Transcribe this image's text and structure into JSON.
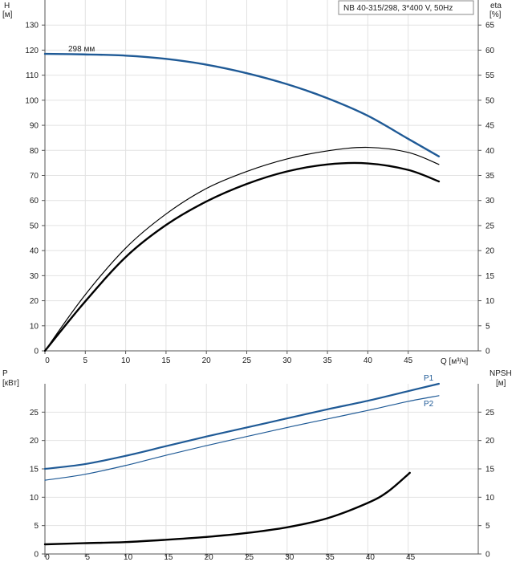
{
  "title_box": "NB 40-315/298, 3*400 V, 50Hz",
  "colors": {
    "blue": "#1f5a96",
    "black": "#000000",
    "grid": "#e2e2e2"
  },
  "chart_data": [
    {
      "type": "line",
      "ylabel_left": {
        "name": "H",
        "unit": "[м]"
      },
      "ylabel_right": {
        "name": "eta",
        "unit": "[%]"
      },
      "xlabel": "Q [м³/ч]",
      "xlim": [
        0,
        50
      ],
      "x_ticks": [
        0,
        5,
        10,
        15,
        20,
        25,
        30,
        35,
        40,
        45
      ],
      "ylim_left": [
        0,
        140
      ],
      "y_ticks_left": [
        0,
        10,
        20,
        30,
        40,
        50,
        60,
        70,
        80,
        90,
        100,
        110,
        120,
        130
      ],
      "ylim_right": [
        0,
        70
      ],
      "y_ticks_right": [
        0,
        5,
        10,
        15,
        20,
        25,
        30,
        35,
        40,
        45,
        50,
        55,
        60,
        65
      ],
      "grid": true,
      "series": [
        {
          "name": "298 мм",
          "axis": "left",
          "color": "#1f5a96",
          "x": [
            0,
            4.8,
            10,
            15,
            20,
            25,
            30,
            35,
            40,
            45,
            48.8
          ],
          "y": [
            118.5,
            118.3,
            117.8,
            116.5,
            114.2,
            110.8,
            106.4,
            100.8,
            93.8,
            84.6,
            77.6
          ]
        },
        {
          "axis": "right",
          "color": "#000000",
          "x": [
            0,
            4.8,
            10,
            15,
            20,
            25,
            30,
            35,
            40,
            45,
            48.8
          ],
          "y": [
            0,
            10.8,
            20.5,
            27.3,
            32.4,
            35.8,
            38.3,
            39.9,
            40.6,
            39.6,
            37.2
          ]
        },
        {
          "axis": "right",
          "color": "#000000",
          "x": [
            0,
            4.8,
            10,
            15,
            20,
            25,
            30,
            35,
            40,
            45,
            48.8
          ],
          "y": [
            0,
            9.5,
            18.7,
            25.1,
            29.8,
            33.3,
            35.8,
            37.2,
            37.4,
            36.1,
            33.8
          ]
        }
      ]
    },
    {
      "type": "line",
      "ylabel_left": {
        "name": "P",
        "unit": "[кВт]"
      },
      "ylabel_right": {
        "name": "NPSH",
        "unit": "[м]"
      },
      "xlim": [
        0,
        50
      ],
      "x_ticks": [
        0,
        5,
        10,
        15,
        20,
        25,
        30,
        35,
        40,
        45
      ],
      "ylim_left": [
        0,
        30
      ],
      "y_ticks_left": [
        0,
        5,
        10,
        15,
        20,
        25
      ],
      "ylim_right": [
        0,
        30
      ],
      "y_ticks_right": [
        0,
        5,
        10,
        15,
        20,
        25
      ],
      "grid": true,
      "series": [
        {
          "name": "P1",
          "axis": "left",
          "color": "#1f5a96",
          "x": [
            0,
            4.8,
            10,
            15,
            20,
            25,
            30,
            35,
            40,
            45,
            48.8
          ],
          "y": [
            15.0,
            15.8,
            17.3,
            19.0,
            20.7,
            22.3,
            23.9,
            25.5,
            27.0,
            28.7,
            30.0
          ]
        },
        {
          "name": "P2",
          "axis": "left",
          "color": "#1f5a96",
          "x": [
            0,
            4.8,
            10,
            15,
            20,
            25,
            30,
            35,
            40,
            45,
            48.8
          ],
          "y": [
            13.0,
            14.0,
            15.6,
            17.4,
            19.1,
            20.7,
            22.3,
            23.8,
            25.3,
            26.9,
            27.9
          ]
        },
        {
          "axis": "right",
          "color": "#000000",
          "x": [
            0,
            4.8,
            10,
            15,
            20,
            25,
            30,
            35,
            40,
            42.5,
            45.2
          ],
          "y": [
            1.7,
            1.9,
            2.1,
            2.5,
            3.0,
            3.7,
            4.7,
            6.3,
            9.0,
            11.0,
            14.3
          ]
        }
      ]
    }
  ]
}
